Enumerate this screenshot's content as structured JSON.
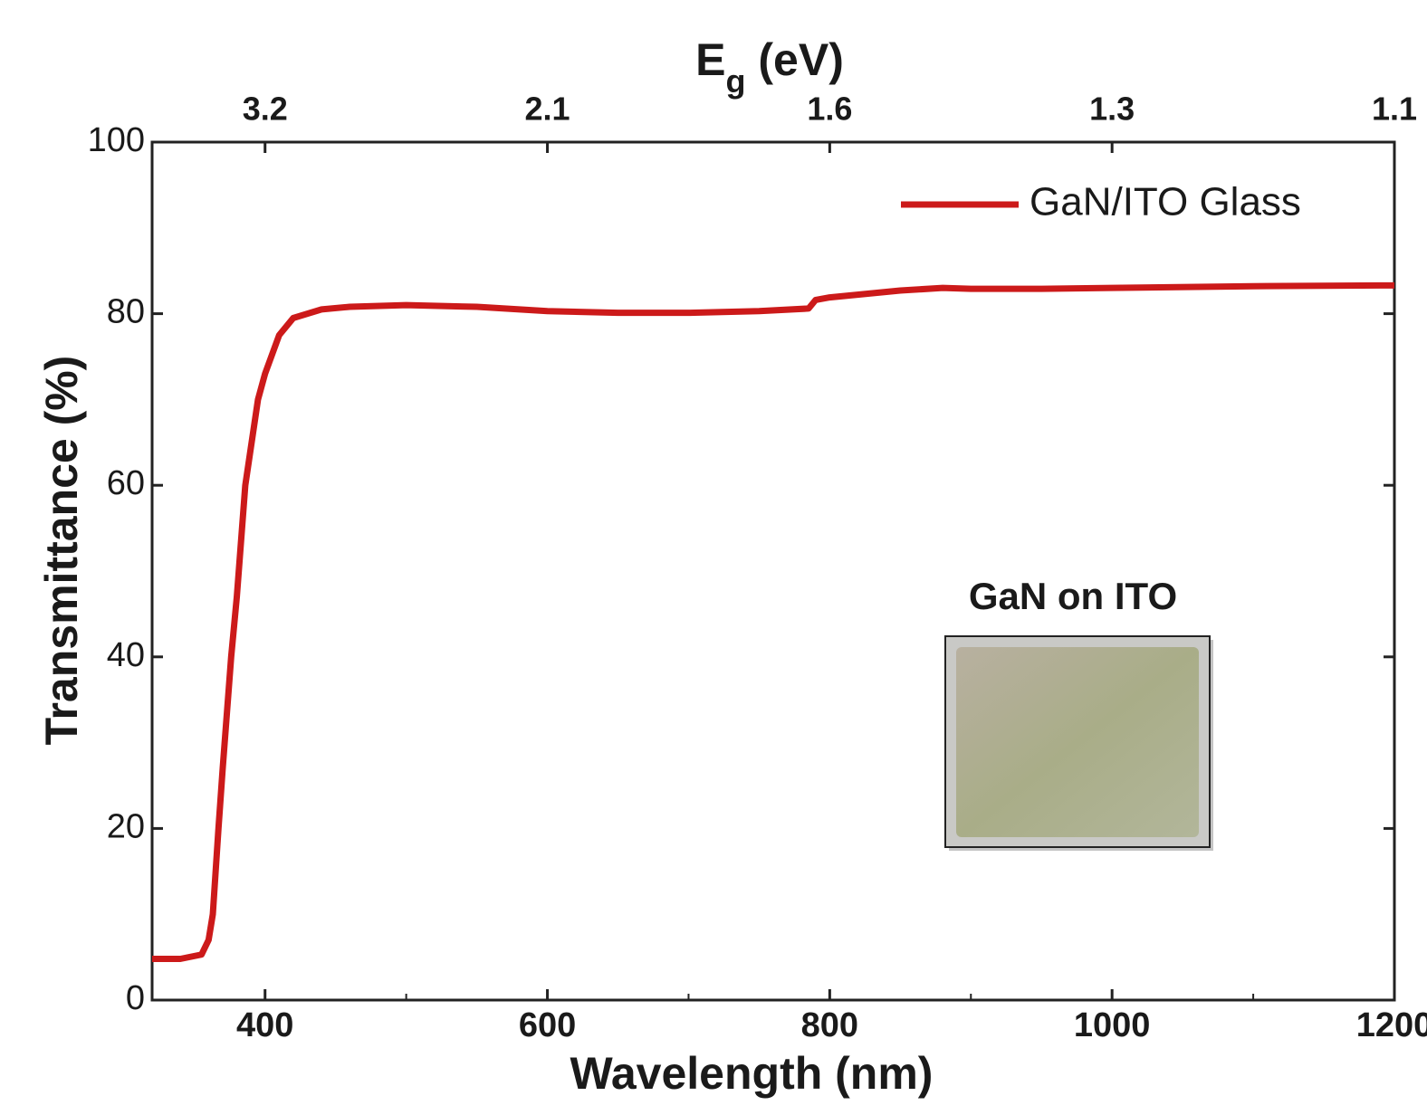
{
  "chart_data": {
    "type": "line",
    "xlabel": "Wavelength (nm)",
    "ylabel": "Transmittance (%)",
    "x2label": [
      "E",
      "g",
      " (eV)"
    ],
    "xlim": [
      320,
      1200
    ],
    "ylim": [
      0,
      100
    ],
    "xticks": [
      400,
      600,
      800,
      1000,
      1200
    ],
    "xminorticks": [
      500,
      700,
      900,
      1100
    ],
    "yticks": [
      0,
      20,
      40,
      60,
      80,
      100
    ],
    "x2ticks": [
      {
        "value": 400,
        "label": "3.2"
      },
      {
        "value": 600,
        "label": "2.1"
      },
      {
        "value": 800,
        "label": "1.6"
      },
      {
        "value": 1000,
        "label": "1.3"
      },
      {
        "value": 1200,
        "label": "1.1"
      }
    ],
    "legend_position": "upper right",
    "inset_label": "GaN on ITO",
    "x": [
      320,
      340,
      355,
      360,
      363,
      367,
      370,
      376,
      380,
      386,
      395,
      400,
      410,
      420,
      440,
      460,
      500,
      550,
      600,
      650,
      700,
      750,
      785,
      790,
      800,
      850,
      880,
      900,
      950,
      1000,
      1100,
      1200
    ],
    "series": [
      {
        "name": "GaN/ITO Glass",
        "color": "#cc1a1a",
        "values": [
          4.8,
          4.8,
          5.3,
          7,
          10,
          20,
          27,
          40,
          47,
          60,
          70,
          73,
          77.5,
          79.5,
          80.5,
          80.8,
          81.0,
          80.8,
          80.3,
          80.1,
          80.1,
          80.3,
          80.6,
          81.6,
          81.9,
          82.7,
          83.0,
          82.9,
          82.9,
          83.0,
          83.2,
          83.3
        ]
      }
    ]
  }
}
